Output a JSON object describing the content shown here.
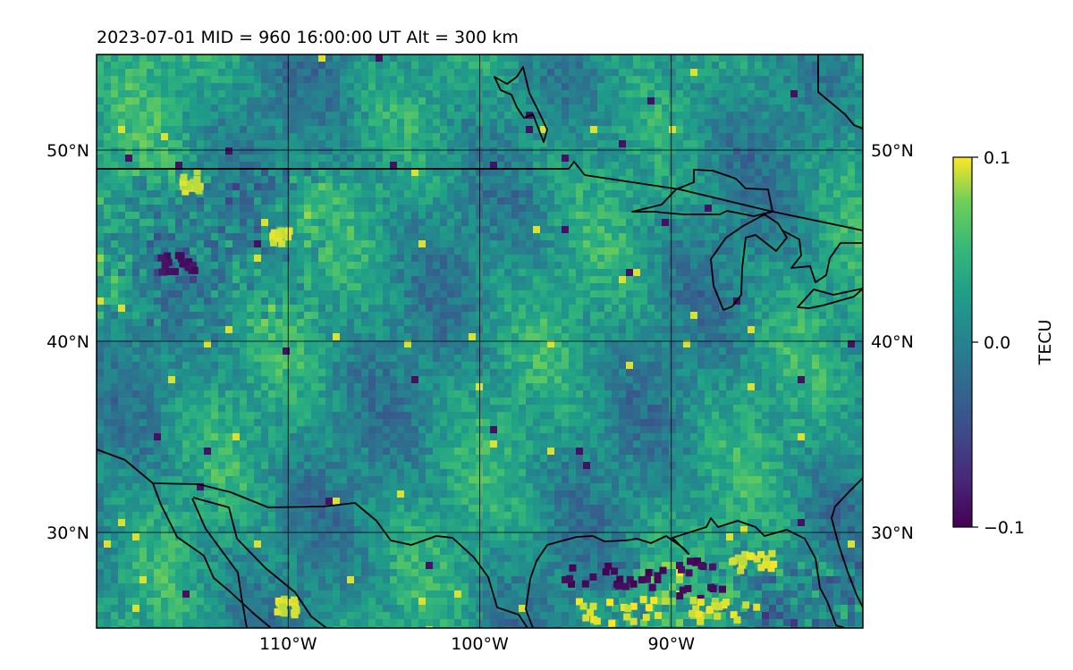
{
  "title": "2023-07-01  MID = 960    16:00:00  UT  Alt = 300 km",
  "map": {
    "lon_range": [
      -120,
      -80
    ],
    "lat_range": [
      25,
      55
    ],
    "lon_ticks": [
      {
        "value": -110,
        "label": "110°W"
      },
      {
        "value": -100,
        "label": "100°W"
      },
      {
        "value": -90,
        "label": "90°W"
      }
    ],
    "lat_ticks": [
      {
        "value": 30,
        "label": "30°N"
      },
      {
        "value": 40,
        "label": "40°N"
      },
      {
        "value": 50,
        "label": "50°N"
      }
    ],
    "gridlines": true,
    "coastlines": true,
    "field": "differential TEC (noise-like, ~-0.1 to 0.1)"
  },
  "colorbar": {
    "label": "TECU",
    "colormap": "viridis",
    "min": -0.1,
    "max": 0.1,
    "ticks": [
      {
        "value": 0.1,
        "label": "0.1"
      },
      {
        "value": 0.0,
        "label": "0.0"
      },
      {
        "value": -0.1,
        "label": "−0.1"
      }
    ]
  },
  "colors": {
    "viridis_low": "#440154",
    "viridis_mid": "#21918c",
    "viridis_high": "#fde725"
  }
}
